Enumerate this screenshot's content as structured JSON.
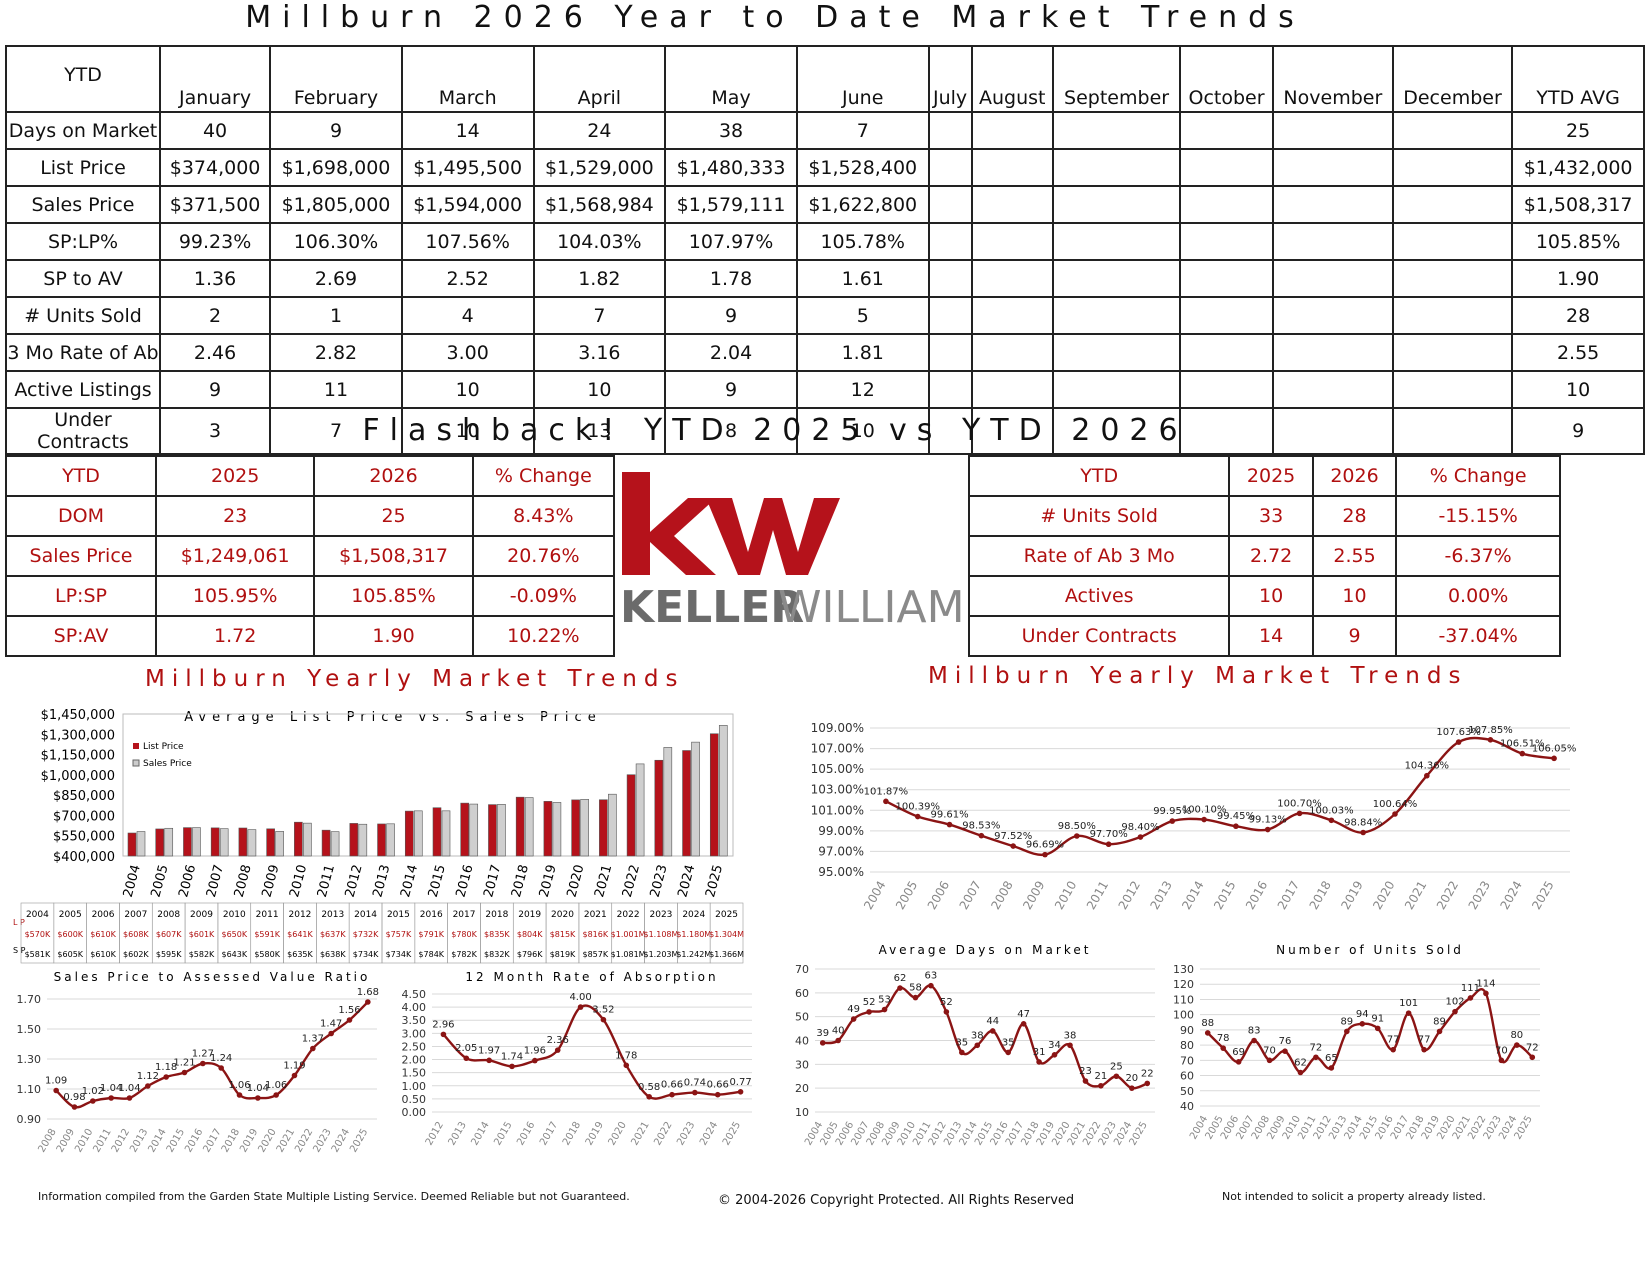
{
  "main_title": "Millburn 2026 Year to Date Market Trends",
  "ytd_table": {
    "corner": "YTD",
    "columns": [
      "January",
      "February",
      "March",
      "April",
      "May",
      "June",
      "July",
      "August",
      "September",
      "October",
      "November",
      "December",
      "YTD AVG"
    ],
    "rows": [
      {
        "label": "Days on Market",
        "values": [
          "40",
          "9",
          "14",
          "24",
          "38",
          "7",
          "",
          "",
          "",
          "",
          "",
          "",
          "25"
        ]
      },
      {
        "label": "List Price",
        "values": [
          "$374,000",
          "$1,698,000",
          "$1,495,500",
          "$1,529,000",
          "$1,480,333",
          "$1,528,400",
          "",
          "",
          "",
          "",
          "",
          "",
          "$1,432,000"
        ]
      },
      {
        "label": "Sales Price",
        "values": [
          "$371,500",
          "$1,805,000",
          "$1,594,000",
          "$1,568,984",
          "$1,579,111",
          "$1,622,800",
          "",
          "",
          "",
          "",
          "",
          "",
          "$1,508,317"
        ]
      },
      {
        "label": "SP:LP%",
        "values": [
          "99.23%",
          "106.30%",
          "107.56%",
          "104.03%",
          "107.97%",
          "105.78%",
          "",
          "",
          "",
          "",
          "",
          "",
          "105.85%"
        ]
      },
      {
        "label": "SP to AV",
        "values": [
          "1.36",
          "2.69",
          "2.52",
          "1.82",
          "1.78",
          "1.61",
          "",
          "",
          "",
          "",
          "",
          "",
          "1.90"
        ]
      },
      {
        "label": "# Units Sold",
        "values": [
          "2",
          "1",
          "4",
          "7",
          "9",
          "5",
          "",
          "",
          "",
          "",
          "",
          "",
          "28"
        ]
      },
      {
        "label": "3 Mo Rate of Ab",
        "values": [
          "2.46",
          "2.82",
          "3.00",
          "3.16",
          "2.04",
          "1.81",
          "",
          "",
          "",
          "",
          "",
          "",
          "2.55"
        ]
      },
      {
        "label": "Active Listings",
        "values": [
          "9",
          "11",
          "10",
          "10",
          "9",
          "12",
          "",
          "",
          "",
          "",
          "",
          "",
          "10"
        ]
      },
      {
        "label": "Under Contracts",
        "values": [
          "3",
          "7",
          "10",
          "13",
          "8",
          "10",
          "",
          "",
          "",
          "",
          "",
          "",
          "9"
        ]
      }
    ]
  },
  "flashback_title": "Flashback! YTD 2025 vs YTD 2026",
  "flashback_left": {
    "header": [
      "YTD",
      "2025",
      "2026",
      "% Change"
    ],
    "rows": [
      [
        "DOM",
        "23",
        "25",
        "8.43%"
      ],
      [
        "Sales Price",
        "$1,249,061",
        "$1,508,317",
        "20.76%"
      ],
      [
        "LP:SP",
        "105.95%",
        "105.85%",
        "-0.09%"
      ],
      [
        "SP:AV",
        "1.72",
        "1.90",
        "10.22%"
      ]
    ]
  },
  "flashback_right": {
    "header": [
      "YTD",
      "2025",
      "2026",
      "% Change"
    ],
    "rows": [
      [
        "# Units Sold",
        "33",
        "28",
        "-15.15%"
      ],
      [
        "Rate of Ab 3 Mo",
        "2.72",
        "2.55",
        "-6.37%"
      ],
      [
        "Actives",
        "10",
        "10",
        "0.00%"
      ],
      [
        "Under Contracts",
        "14",
        "9",
        "-37.04%"
      ]
    ]
  },
  "logo": {
    "mark": "kw",
    "wordmark_bold": "KELLER",
    "wordmark_light": "WILLIAMS",
    "color": "#b5121b"
  },
  "section_left_title": "Millburn Yearly Market Trends",
  "section_right_title": "Millburn Yearly Market Trends",
  "footer": {
    "left": "Information compiled from the Garden State Multiple Listing Service.  Deemed Reliable but not Guaranteed.",
    "center": "© 2004-2026 Copyright Protected.  All Rights Reserved",
    "right": "Not intended to solicit a property already listed."
  },
  "colors": {
    "accent": "#b01010",
    "line": "#8b1414"
  },
  "chart_data": [
    {
      "id": "lp_sp",
      "type": "bar",
      "title": "Average List Price vs. Sales Price",
      "categories": [
        "2004",
        "2005",
        "2006",
        "2007",
        "2008",
        "2009",
        "2010",
        "2011",
        "2012",
        "2013",
        "2014",
        "2015",
        "2016",
        "2017",
        "2018",
        "2019",
        "2020",
        "2021",
        "2022",
        "2023",
        "2024",
        "2025"
      ],
      "series": [
        {
          "name": "List Price",
          "values": [
            570,
            600,
            610,
            608,
            607,
            601,
            650,
            591,
            641,
            637,
            732,
            757,
            791,
            780,
            835,
            804,
            815,
            816,
            1001,
            1108,
            1180,
            1304
          ]
        },
        {
          "name": "Sales Price",
          "values": [
            581,
            605,
            610,
            602,
            595,
            582,
            643,
            580,
            635,
            638,
            734,
            734,
            784,
            782,
            832,
            796,
            819,
            857,
            1081,
            1203,
            1242,
            1366
          ]
        }
      ],
      "ylim": [
        400000,
        1450000
      ],
      "yticks": [
        "$1,450,000",
        "$1,300,000",
        "$1,150,000",
        "$1,000,000",
        "$850,000",
        "$700,000",
        "$550,000",
        "$400,000"
      ],
      "table_row_labels": [
        "L P",
        "S P"
      ],
      "table_lp": [
        "$570K",
        "$600K",
        "$610K",
        "$608K",
        "$607K",
        "$601K",
        "$650K",
        "$591K",
        "$641K",
        "$637K",
        "$732K",
        "$757K",
        "$791K",
        "$780K",
        "$835K",
        "$804K",
        "$815K",
        "$816K",
        "$1.001M",
        "$1.108M",
        "$1.180M",
        "$1.304M"
      ],
      "table_sp": [
        "$581K",
        "$605K",
        "$610K",
        "$602K",
        "$595K",
        "$582K",
        "$643K",
        "$580K",
        "$635K",
        "$638K",
        "$734K",
        "$734K",
        "$784K",
        "$782K",
        "$832K",
        "$796K",
        "$819K",
        "$857K",
        "$1.081M",
        "$1.203M",
        "$1.242M",
        "$1.366M"
      ]
    },
    {
      "id": "splp",
      "type": "line",
      "x": [
        "2004",
        "2005",
        "2006",
        "2007",
        "2008",
        "2009",
        "2010",
        "2011",
        "2012",
        "2013",
        "2014",
        "2015",
        "2016",
        "2017",
        "2018",
        "2019",
        "2020",
        "2021",
        "2022",
        "2023",
        "2024",
        "2025"
      ],
      "values": [
        101.87,
        100.39,
        99.61,
        98.53,
        97.52,
        96.69,
        98.5,
        97.7,
        98.4,
        99.95,
        100.1,
        99.45,
        99.13,
        100.7,
        100.03,
        98.84,
        100.64,
        104.36,
        107.63,
        107.85,
        106.51,
        106.05
      ],
      "labels": [
        "101.87%",
        "100.39%",
        "99.61%",
        "98.53%",
        "97.52%",
        "96.69%",
        "98.50%",
        "97.70%",
        "98.40%",
        "99.95%",
        "100.10%",
        "99.45%",
        "99.13%",
        "100.70%",
        "100.03%",
        "98.84%",
        "100.64%",
        "104.36%",
        "107.63%",
        "107.85%",
        "106.51%",
        "106.05%"
      ],
      "ylim": [
        95,
        109
      ],
      "yticks": [
        "109.00%",
        "107.00%",
        "105.00%",
        "103.00%",
        "101.00%",
        "99.00%",
        "97.00%",
        "95.00%"
      ]
    },
    {
      "id": "spav",
      "type": "line",
      "title": "Sales Price to Assessed Value Ratio",
      "x": [
        "2008",
        "2009",
        "2010",
        "2011",
        "2012",
        "2013",
        "2014",
        "2015",
        "2016",
        "2017",
        "2018",
        "2019",
        "2020",
        "2021",
        "2022",
        "2023",
        "2024",
        "2025"
      ],
      "values": [
        1.09,
        0.98,
        1.02,
        1.04,
        1.04,
        1.12,
        1.18,
        1.21,
        1.27,
        1.24,
        1.06,
        1.04,
        1.06,
        1.19,
        1.37,
        1.47,
        1.56,
        1.68
      ],
      "labels": [
        "1.09",
        "0.98",
        "1.02",
        "1.04",
        "1.04",
        "1.12",
        "1.18",
        "1.21",
        "1.27",
        "1.24",
        "1.06",
        "1.04",
        "1.06",
        "1.19",
        "1.37",
        "1.47",
        "1.56",
        "1.68"
      ],
      "ylim": [
        0.9,
        1.7
      ],
      "yticks": [
        "1.70",
        "1.50",
        "1.30",
        "1.10",
        "0.90"
      ]
    },
    {
      "id": "absorb",
      "type": "line",
      "title": "12 Month Rate of Absorption",
      "x": [
        "2012",
        "2013",
        "2014",
        "2015",
        "2016",
        "2017",
        "2018",
        "2019",
        "2020",
        "2021",
        "2022",
        "2023",
        "2024",
        "2025"
      ],
      "values": [
        2.96,
        2.05,
        1.97,
        1.74,
        1.96,
        2.36,
        4.0,
        3.52,
        1.78,
        0.58,
        0.66,
        0.74,
        0.66,
        0.77
      ],
      "labels": [
        "2.96",
        "2.05",
        "1.97",
        "1.74",
        "1.96",
        "2.36",
        "4.00",
        "3.52",
        "1.78",
        "0.58",
        "0.66",
        "0.74",
        "0.66",
        "0.77"
      ],
      "ylim": [
        0,
        4.5
      ],
      "yticks": [
        "4.50",
        "4.00",
        "3.50",
        "3.00",
        "2.50",
        "2.00",
        "1.50",
        "1.00",
        "0.50",
        "0.00"
      ]
    },
    {
      "id": "dom",
      "type": "line",
      "title": "Average Days on Market",
      "x": [
        "2004",
        "2005",
        "2006",
        "2007",
        "2008",
        "2009",
        "2010",
        "2011",
        "2012",
        "2013",
        "2014",
        "2015",
        "2016",
        "2017",
        "2018",
        "2019",
        "2020",
        "2021",
        "2022",
        "2023",
        "2024",
        "2025"
      ],
      "values": [
        39,
        40,
        49,
        52,
        53,
        62,
        58,
        63,
        52,
        35,
        38,
        44,
        35,
        47,
        31,
        34,
        38,
        23,
        21,
        25,
        20,
        22
      ],
      "labels": [
        "39",
        "40",
        "49",
        "52",
        "53",
        "62",
        "58",
        "63",
        "52",
        "35",
        "38",
        "44",
        "35",
        "47",
        "31",
        "34",
        "38",
        "23",
        "21",
        "25",
        "20",
        "22"
      ],
      "ylim": [
        10,
        70
      ],
      "yticks": [
        "70",
        "60",
        "50",
        "40",
        "30",
        "20",
        "10"
      ]
    },
    {
      "id": "units",
      "type": "line",
      "title": "Number of Units Sold",
      "x": [
        "2004",
        "2005",
        "2006",
        "2007",
        "2008",
        "2009",
        "2010",
        "2011",
        "2012",
        "2013",
        "2014",
        "2015",
        "2016",
        "2017",
        "2018",
        "2019",
        "2020",
        "2021",
        "2022",
        "2023",
        "2024",
        "2025"
      ],
      "values": [
        88,
        78,
        69,
        83,
        70,
        76,
        62,
        72,
        65,
        89,
        94,
        91,
        77,
        101,
        77,
        89,
        102,
        111,
        114,
        70,
        80,
        72
      ],
      "labels": [
        "88",
        "78",
        "69",
        "83",
        "70",
        "76",
        "62",
        "72",
        "65",
        "89",
        "94",
        "91",
        "77",
        "101",
        "77",
        "89",
        "102",
        "111",
        "114",
        "70",
        "80",
        "72"
      ],
      "ylim": [
        40,
        130
      ],
      "yticks": [
        "130",
        "120",
        "110",
        "100",
        "90",
        "80",
        "70",
        "60",
        "50",
        "40"
      ]
    }
  ]
}
